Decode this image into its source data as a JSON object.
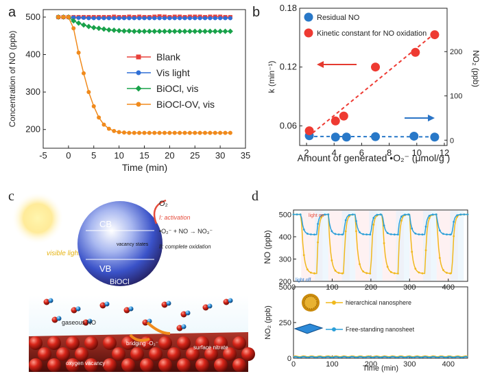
{
  "panel_labels": {
    "a": "a",
    "b": "b",
    "c": "c",
    "d": "d"
  },
  "chart_data": [
    {
      "panel": "a",
      "type": "line",
      "xlabel": "Time (min)",
      "ylabel": "Concentration of NO (ppb)",
      "xlim": [
        -5,
        35
      ],
      "ylim": [
        150,
        520
      ],
      "xticks": [
        "-5",
        "0",
        "5",
        "10",
        "15",
        "20",
        "25",
        "30",
        "35"
      ],
      "yticks": [
        "200",
        "300",
        "400",
        "500"
      ],
      "legend_position": "right",
      "series": [
        {
          "name": "Blank",
          "color": "#e8403a",
          "marker": "square",
          "x": [
            -2,
            -1,
            0,
            1,
            2,
            3,
            4,
            5,
            6,
            7,
            8,
            9,
            10,
            11,
            12,
            13,
            14,
            15,
            16,
            17,
            18,
            19,
            20,
            21,
            22,
            23,
            24,
            25,
            26,
            27,
            28,
            29,
            30,
            31,
            32
          ],
          "y": [
            500,
            500,
            500,
            500,
            500,
            500,
            500,
            500,
            500,
            500,
            500,
            501,
            500,
            500,
            501,
            500,
            501,
            500,
            500,
            501,
            502,
            501,
            500,
            501,
            501,
            500,
            501,
            501,
            501,
            500,
            501,
            501,
            501,
            500,
            500
          ]
        },
        {
          "name": "Vis light",
          "color": "#2f6fd6",
          "marker": "circle",
          "x": [
            -2,
            -1,
            0,
            1,
            2,
            3,
            4,
            5,
            6,
            7,
            8,
            9,
            10,
            11,
            12,
            13,
            14,
            15,
            16,
            17,
            18,
            19,
            20,
            21,
            22,
            23,
            24,
            25,
            26,
            27,
            28,
            29,
            30,
            31,
            32
          ],
          "y": [
            500,
            500,
            500,
            499,
            498,
            498,
            497,
            497,
            497,
            497,
            497,
            497,
            497,
            497,
            497,
            497,
            497,
            497,
            497,
            497,
            497,
            497,
            497,
            497,
            497,
            497,
            497,
            497,
            497,
            497,
            497,
            497,
            497,
            497,
            497
          ]
        },
        {
          "name": "BiOCl, vis",
          "color": "#19a24a",
          "marker": "diamond",
          "x": [
            -2,
            -1,
            0,
            1,
            2,
            3,
            4,
            5,
            6,
            7,
            8,
            9,
            10,
            11,
            12,
            13,
            14,
            15,
            16,
            17,
            18,
            19,
            20,
            21,
            22,
            23,
            24,
            25,
            26,
            27,
            28,
            29,
            30,
            31,
            32
          ],
          "y": [
            500,
            500,
            500,
            490,
            484,
            479,
            475,
            472,
            470,
            468,
            466,
            465,
            464,
            463,
            463,
            462,
            462,
            462,
            462,
            462,
            462,
            462,
            462,
            462,
            462,
            462,
            462,
            462,
            462,
            462,
            462,
            462,
            462,
            462,
            462
          ]
        },
        {
          "name": "BiOCl-OV, vis",
          "color": "#f08a1c",
          "marker": "circle",
          "x": [
            -2,
            -1,
            0,
            1,
            2,
            3,
            4,
            5,
            6,
            7,
            8,
            9,
            10,
            11,
            12,
            13,
            14,
            15,
            16,
            17,
            18,
            19,
            20,
            21,
            22,
            23,
            24,
            25,
            26,
            27,
            28,
            29,
            30,
            31,
            32
          ],
          "y": [
            500,
            500,
            500,
            470,
            405,
            350,
            300,
            262,
            232,
            213,
            202,
            196,
            193,
            192,
            191,
            191,
            191,
            191,
            191,
            191,
            191,
            191,
            191,
            191,
            191,
            191,
            191,
            191,
            191,
            191,
            191,
            191,
            191,
            191,
            191
          ]
        }
      ]
    },
    {
      "panel": "b",
      "type": "scatter",
      "xlabel": "Amount of generated •O₂⁻ (μmol/g )",
      "ylabel": "k (min⁻¹)",
      "ylabel_right": "NO₂ (ppb)",
      "xlim": [
        1.5,
        12.2
      ],
      "ylim": [
        0.04,
        0.18
      ],
      "ylim_right": [
        -12,
        298
      ],
      "xticks": [
        "2",
        "4",
        "6",
        "8",
        "10",
        "12"
      ],
      "yticks": [
        "0.06",
        "0.12",
        "0.18"
      ],
      "yticks_right": [
        "0",
        "100",
        "200"
      ],
      "legend_position": "top-left",
      "series": [
        {
          "name": "Residual NO",
          "color": "#2878c8",
          "axis": "right",
          "x": [
            2.2,
            4.1,
            4.9,
            7.0,
            9.8,
            11.3
          ],
          "y": [
            10,
            7,
            7,
            8,
            9,
            7
          ]
        },
        {
          "name": "Kinetic constant for NO oxidation",
          "color": "#ee3a32",
          "axis": "left",
          "x": [
            2.2,
            4.1,
            4.7,
            7.0,
            9.9,
            11.3
          ],
          "y": [
            0.055,
            0.065,
            0.07,
            0.12,
            0.135,
            0.153
          ]
        }
      ]
    },
    {
      "panel": "d-top",
      "type": "line",
      "xlabel": "",
      "ylabel": "NO (ppb)",
      "xlim": [
        0,
        450
      ],
      "ylim": [
        200,
        520
      ],
      "xticks": [
        "0",
        "100",
        "200",
        "300",
        "400"
      ],
      "yticks": [
        "200",
        "300",
        "400",
        "500"
      ],
      "annotations": [
        "light on",
        "light off"
      ],
      "series": [
        {
          "name": "hierarchical nanosphere",
          "color": "#f0b81c"
        },
        {
          "name": "Free-standing nanosheet",
          "color": "#2b9fd8"
        }
      ]
    },
    {
      "panel": "d-bottom",
      "type": "line",
      "xlabel": "Time (min)",
      "ylabel": "NO₂ (ppb)",
      "xlim": [
        0,
        450
      ],
      "ylim": [
        0,
        500
      ],
      "xticks": [
        "0",
        "100",
        "200",
        "300",
        "400"
      ],
      "yticks": [
        "0",
        "250",
        "500"
      ],
      "legend_position": "top-left",
      "series": [
        {
          "name": "hierarchical nanosphere",
          "color": "#f0b81c",
          "x": [
            0,
            450
          ],
          "y": [
            12,
            12
          ]
        },
        {
          "name": "Free-standing nanosheet",
          "color": "#2b9fd8",
          "x": [
            0,
            450
          ],
          "y": [
            8,
            8
          ]
        }
      ]
    }
  ],
  "schematic": {
    "visible_light": "visible light",
    "o2": "O₂",
    "activation": "I: activation",
    "cb": "CB",
    "vb": "VB",
    "reaction": "•O₂⁻ +  NO → NO₃⁻",
    "vacancy_states": "vacancy states",
    "complete_oxidation": "II: complete oxidation",
    "material": "BiOCl",
    "gaseous_no": "gaseous NO",
    "bridging_o2": "bridging ·O₂⁻",
    "surface_nitrate": "surface nitrate",
    "oxygen_vacancy": "oxygen vacancy"
  }
}
